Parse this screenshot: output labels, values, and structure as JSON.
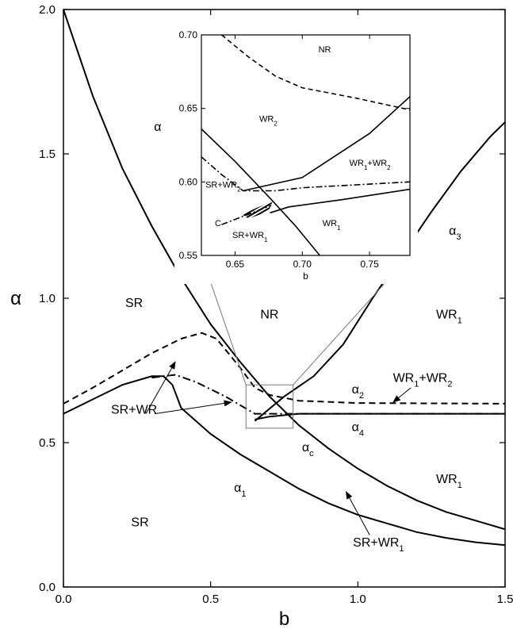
{
  "chart_data": {
    "type": "line",
    "title": "",
    "xlabel": "b",
    "ylabel": "α",
    "xlim": [
      0,
      1.5
    ],
    "ylim": [
      0,
      2.0
    ],
    "xticks": [
      {
        "v": 0,
        "label": "0.0"
      },
      {
        "v": 0.5,
        "label": "0.5"
      },
      {
        "v": 1.0,
        "label": "1.0"
      },
      {
        "v": 1.5,
        "label": "1.5"
      }
    ],
    "yticks": [
      {
        "v": 0,
        "label": "0.0"
      },
      {
        "v": 0.5,
        "label": "0.5"
      },
      {
        "v": 1.0,
        "label": "1.0"
      },
      {
        "v": 1.5,
        "label": "1.5"
      },
      {
        "v": 2.0,
        "label": "2.0"
      }
    ],
    "series": [
      {
        "style": "solid",
        "points": [
          [
            0,
            2.0
          ],
          [
            0.1,
            1.7
          ],
          [
            0.2,
            1.45
          ],
          [
            0.3,
            1.25
          ],
          [
            0.4,
            1.07
          ],
          [
            0.5,
            0.91
          ],
          [
            0.6,
            0.78
          ],
          [
            0.7,
            0.66
          ],
          [
            0.8,
            0.56
          ],
          [
            0.9,
            0.48
          ],
          [
            1.0,
            0.41
          ],
          [
            1.1,
            0.35
          ],
          [
            1.2,
            0.3
          ],
          [
            1.3,
            0.26
          ],
          [
            1.4,
            0.23
          ],
          [
            1.5,
            0.2
          ]
        ]
      },
      {
        "style": "solid",
        "points": [
          [
            0,
            0.6
          ],
          [
            0.1,
            0.65
          ],
          [
            0.2,
            0.7
          ],
          [
            0.3,
            0.73
          ],
          [
            0.34,
            0.73
          ],
          [
            0.37,
            0.7
          ],
          [
            0.4,
            0.62
          ],
          [
            0.5,
            0.53
          ],
          [
            0.6,
            0.46
          ],
          [
            0.7,
            0.4
          ],
          [
            0.8,
            0.34
          ],
          [
            0.9,
            0.29
          ],
          [
            1.0,
            0.25
          ],
          [
            1.1,
            0.22
          ],
          [
            1.2,
            0.19
          ],
          [
            1.3,
            0.17
          ],
          [
            1.4,
            0.155
          ],
          [
            1.5,
            0.145
          ]
        ]
      },
      {
        "style": "dashed",
        "points": [
          [
            0,
            0.635
          ],
          [
            0.1,
            0.69
          ],
          [
            0.2,
            0.75
          ],
          [
            0.3,
            0.81
          ],
          [
            0.4,
            0.86
          ],
          [
            0.47,
            0.88
          ],
          [
            0.52,
            0.86
          ],
          [
            0.6,
            0.76
          ],
          [
            0.65,
            0.69
          ],
          [
            0.7,
            0.665
          ],
          [
            0.8,
            0.645
          ],
          [
            1.0,
            0.637
          ],
          [
            1.5,
            0.635
          ]
        ]
      },
      {
        "style": "dashdot",
        "points": [
          [
            0.3,
            0.725
          ],
          [
            0.38,
            0.735
          ],
          [
            0.45,
            0.71
          ],
          [
            0.55,
            0.66
          ],
          [
            0.65,
            0.6
          ],
          [
            0.7,
            0.6
          ],
          [
            0.8,
            0.6
          ],
          [
            1.0,
            0.6
          ],
          [
            1.5,
            0.6
          ]
        ]
      },
      {
        "style": "solid",
        "points": [
          [
            0.65,
            0.58
          ],
          [
            0.7,
            0.59
          ],
          [
            0.8,
            0.6
          ],
          [
            1.0,
            0.6
          ],
          [
            1.5,
            0.6
          ]
        ]
      },
      {
        "style": "solid",
        "points": [
          [
            0.65,
            0.575
          ],
          [
            0.75,
            0.66
          ],
          [
            0.85,
            0.73
          ],
          [
            0.95,
            0.84
          ],
          [
            1.05,
            1.0
          ],
          [
            1.15,
            1.15
          ],
          [
            1.25,
            1.3
          ],
          [
            1.35,
            1.44
          ],
          [
            1.45,
            1.56
          ],
          [
            1.5,
            1.61
          ]
        ]
      }
    ],
    "annotations": [
      {
        "text": "α",
        "x": 0.32,
        "y": 1.58,
        "style": "greek"
      },
      {
        "text": "SR",
        "x": 0.24,
        "y": 0.97
      },
      {
        "text": "NR",
        "x": 0.7,
        "y": 0.93
      },
      {
        "text": "WR",
        "sub": "1",
        "x": 1.31,
        "y": 0.93
      },
      {
        "text": "WR",
        "sub": "1",
        "x": 1.31,
        "y": 0.36
      },
      {
        "text": "SR",
        "x": 0.26,
        "y": 0.21
      },
      {
        "text": "α",
        "sub": "3",
        "x": 1.33,
        "y": 1.22,
        "style": "greek"
      },
      {
        "text": "α",
        "sub": "2",
        "x": 1.0,
        "y": 0.67,
        "style": "greek"
      },
      {
        "text": "α",
        "sub": "4",
        "x": 1.0,
        "y": 0.54,
        "style": "greek"
      },
      {
        "text": "α",
        "sub": "c",
        "x": 0.83,
        "y": 0.47,
        "style": "greek"
      },
      {
        "text": "α",
        "sub": "1",
        "x": 0.6,
        "y": 0.33,
        "style": "greek"
      },
      {
        "text": "SR+WR",
        "x": 0.24,
        "y": 0.6
      },
      {
        "text": "WR",
        "sub": "1",
        "suffix": "+WR",
        "sub2": "2",
        "x": 1.22,
        "y": 0.71
      },
      {
        "text": "SR+WR",
        "sub": "1",
        "x": 1.07,
        "y": 0.14
      }
    ],
    "arrows": [
      {
        "from": [
          0.28,
          0.6
        ],
        "to": [
          0.38,
          0.78
        ]
      },
      {
        "from": [
          0.31,
          0.6
        ],
        "to": [
          0.57,
          0.64
        ]
      },
      {
        "from": [
          1.04,
          0.18
        ],
        "to": [
          0.96,
          0.33
        ]
      },
      {
        "from": [
          1.18,
          0.69
        ],
        "to": [
          1.12,
          0.64
        ]
      }
    ],
    "zoom_box": {
      "x": [
        0.62,
        0.78
      ],
      "y": [
        0.55,
        0.7
      ]
    },
    "inset": {
      "xlabel": "b",
      "xlim": [
        0.625,
        0.78
      ],
      "ylim": [
        0.55,
        0.7
      ],
      "xticks": [
        {
          "v": 0.65,
          "label": "0.65"
        },
        {
          "v": 0.7,
          "label": "0.70"
        },
        {
          "v": 0.75,
          "label": "0.75"
        }
      ],
      "yticks": [
        {
          "v": 0.55,
          "label": "0.55"
        },
        {
          "v": 0.6,
          "label": "0.60"
        },
        {
          "v": 0.65,
          "label": "0.65"
        },
        {
          "v": 0.7,
          "label": "0.70"
        }
      ],
      "series": [
        {
          "style": "dashed",
          "points": [
            [
              0.64,
              0.7
            ],
            [
              0.66,
              0.685
            ],
            [
              0.68,
              0.672
            ],
            [
              0.7,
              0.664
            ],
            [
              0.74,
              0.657
            ],
            [
              0.78,
              0.649
            ]
          ]
        },
        {
          "style": "solid",
          "points": [
            [
              0.625,
              0.636
            ],
            [
              0.65,
              0.614
            ],
            [
              0.675,
              0.59
            ],
            [
              0.695,
              0.57
            ],
            [
              0.713,
              0.55
            ]
          ]
        },
        {
          "style": "dashdot",
          "points": [
            [
              0.625,
              0.617
            ],
            [
              0.64,
              0.605
            ],
            [
              0.656,
              0.594
            ],
            [
              0.68,
              0.594
            ],
            [
              0.7,
              0.596
            ],
            [
              0.74,
              0.598
            ],
            [
              0.78,
              0.6
            ]
          ]
        },
        {
          "style": "solid",
          "points": [
            [
              0.656,
              0.594
            ],
            [
              0.7,
              0.603
            ],
            [
              0.75,
              0.633
            ],
            [
              0.78,
              0.658
            ]
          ]
        },
        {
          "style": "solid",
          "points": [
            [
              0.676,
              0.579
            ],
            [
              0.69,
              0.583
            ],
            [
              0.73,
              0.588
            ],
            [
              0.78,
              0.595
            ]
          ]
        },
        {
          "style": "dashdot",
          "points": [
            [
              0.64,
              0.571
            ],
            [
              0.66,
              0.578
            ],
            [
              0.677,
              0.584
            ]
          ]
        }
      ],
      "hatch": [
        [
          0.655,
          0.578
        ],
        [
          0.678,
          0.587
        ],
        [
          0.675,
          0.58
        ],
        [
          0.66,
          0.575
        ]
      ],
      "annotations": [
        {
          "text": "NR",
          "x": 0.712,
          "y": 0.688
        },
        {
          "text": "WR",
          "sub": "2",
          "x": 0.668,
          "y": 0.641
        },
        {
          "text": "WR",
          "sub": "1",
          "suffix": "+WR",
          "sub2": "2",
          "x": 0.735,
          "y": 0.611
        },
        {
          "text": "SR+WR",
          "sub": "2",
          "x": 0.628,
          "y": 0.596
        },
        {
          "text": "C",
          "x": 0.635,
          "y": 0.57
        },
        {
          "text": "SR+WR",
          "sub": "1",
          "x": 0.648,
          "y": 0.562
        },
        {
          "text": "WR",
          "sub": "1",
          "x": 0.715,
          "y": 0.57
        }
      ]
    }
  }
}
